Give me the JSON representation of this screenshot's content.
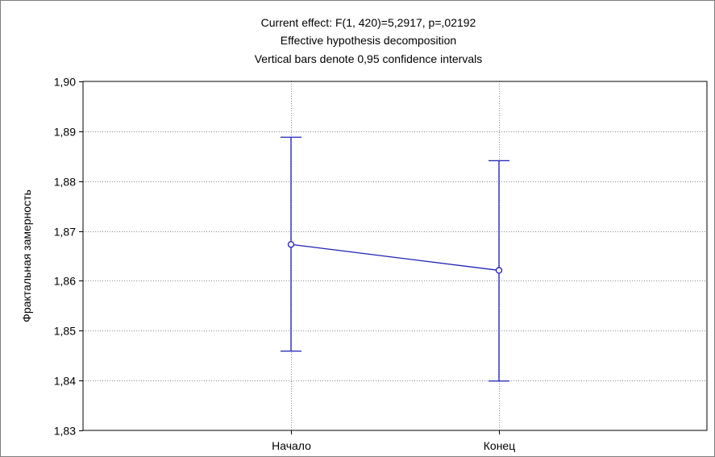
{
  "chart_data": {
    "type": "line",
    "title_lines": [
      "Current effect: F(1, 420)=5,2917, p=,02192",
      "Effective hypothesis decomposition",
      "Vertical bars denote 0,95 confidence intervals"
    ],
    "xlabel": "",
    "ylabel": "Фрактальная замерность",
    "categories": [
      "Начало",
      "Конец"
    ],
    "means": [
      1.8673,
      1.8621
    ],
    "ci_lower": [
      1.8459,
      1.8399
    ],
    "ci_upper": [
      1.8888,
      1.8841
    ],
    "ylim": [
      1.83,
      1.9
    ],
    "yticks": [
      1.83,
      1.84,
      1.85,
      1.86,
      1.87,
      1.88,
      1.89,
      1.9
    ],
    "ytick_labels": [
      "1,83",
      "1,84",
      "1,85",
      "1,86",
      "1,87",
      "1,88",
      "1,89",
      "1,90"
    ],
    "grid": true,
    "colors": {
      "series": "#1f1fb8",
      "grid": "#8a8a8a",
      "axis": "#000000"
    }
  }
}
